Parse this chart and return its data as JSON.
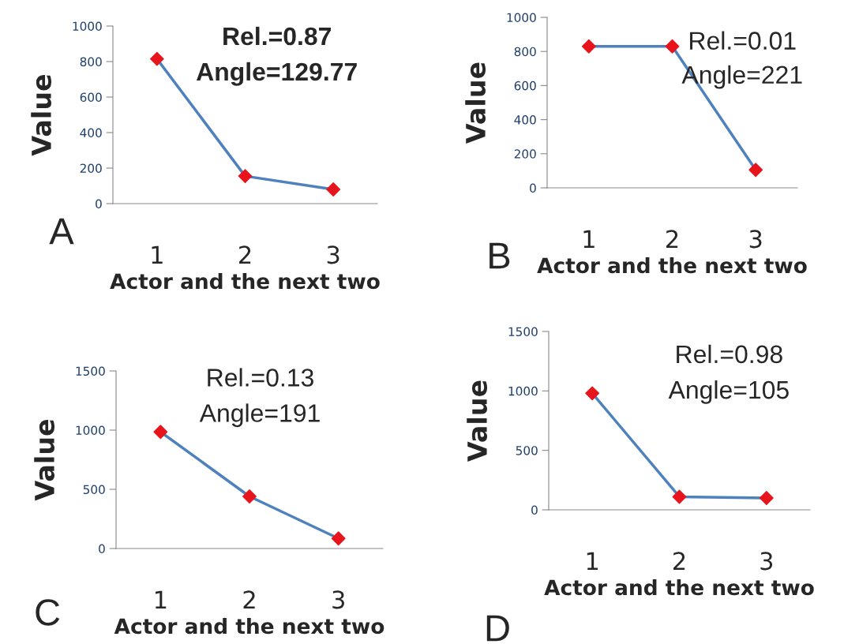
{
  "chart_data": [
    {
      "type": "line",
      "xlabel": "Actor and the next two",
      "ylabel": "Value",
      "categories": [
        "1",
        "2",
        "3"
      ],
      "marker": "diamond",
      "ylim": [
        0,
        1000
      ],
      "yticks": [
        0,
        200,
        400,
        600,
        800,
        1000
      ],
      "grid": false,
      "legend": false,
      "annotations": [
        "Rel.=0.87",
        "Angle=129.77",
        "A"
      ],
      "series": [
        {
          "color": "#4f81bd",
          "colors": [
            "#e8141c",
            "#e8141c",
            "#e8141c"
          ],
          "values": [
            815,
            155,
            80
          ]
        }
      ]
    },
    {
      "type": "line",
      "xlabel": "Actor and the next two",
      "ylabel": "Value",
      "categories": [
        "1",
        "2",
        "3"
      ],
      "marker": "diamond",
      "ylim": [
        0,
        1000
      ],
      "yticks": [
        0,
        200,
        400,
        600,
        800,
        1000
      ],
      "grid": false,
      "legend": false,
      "annotations": [
        "Rel.=0.01",
        "Angle=221",
        "B"
      ],
      "series": [
        {
          "color": "#4f81bd",
          "colors": [
            "#e8141c",
            "#e8141c",
            "#e8141c"
          ],
          "values": [
            830,
            830,
            105
          ]
        }
      ]
    },
    {
      "type": "line",
      "xlabel": "Actor and the next two",
      "ylabel": "Value",
      "categories": [
        "1",
        "2",
        "3"
      ],
      "marker": "diamond",
      "ylim": [
        0,
        1500
      ],
      "yticks": [
        0,
        500,
        1000,
        1500
      ],
      "grid": false,
      "legend": false,
      "annotations": [
        "Rel.=0.13",
        "Angle=191",
        "C"
      ],
      "series": [
        {
          "color": "#4f81bd",
          "colors": [
            "#e8141c",
            "#e8141c",
            "#e8141c"
          ],
          "values": [
            985,
            440,
            85
          ]
        }
      ]
    },
    {
      "type": "line",
      "xlabel": "Actor and the next two",
      "ylabel": "Value",
      "categories": [
        "1",
        "2",
        "3"
      ],
      "marker": "diamond",
      "ylim": [
        0,
        1500
      ],
      "yticks": [
        0,
        500,
        1000,
        1500
      ],
      "grid": false,
      "legend": false,
      "annotations": [
        "Rel.=0.98",
        "Angle=105",
        "D"
      ],
      "series": [
        {
          "color": "#4f81bd",
          "colors": [
            "#e8141c",
            "#e8141c",
            "#e8141c"
          ],
          "values": [
            980,
            110,
            100
          ]
        }
      ]
    }
  ]
}
